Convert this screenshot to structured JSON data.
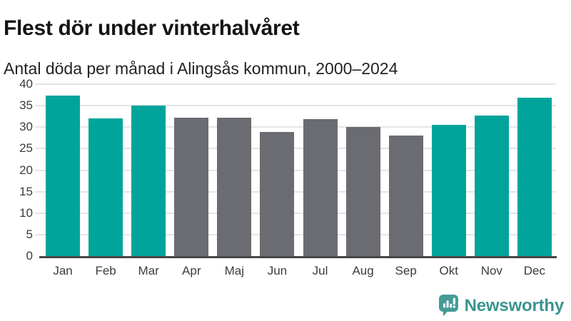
{
  "header": {
    "title": "Flest dör under vinterhalvåret",
    "subtitle": "Antal döda per månad i Alingsås kommun, 2000–2024"
  },
  "chart_data": {
    "type": "bar",
    "title": "Flest dör under vinterhalvåret",
    "subtitle": "Antal döda per månad i Alingsås kommun, 2000–2024",
    "categories": [
      "Jan",
      "Feb",
      "Mar",
      "Apr",
      "Maj",
      "Jun",
      "Jul",
      "Aug",
      "Sep",
      "Okt",
      "Nov",
      "Dec"
    ],
    "values": [
      37.4,
      32.1,
      35.1,
      32.2,
      32.2,
      28.9,
      31.9,
      30.1,
      28.0,
      30.5,
      32.7,
      36.9
    ],
    "bar_colors": [
      "#00a49b",
      "#00a49b",
      "#00a49b",
      "#6b6b72",
      "#6b6b72",
      "#6b6b72",
      "#6b6b72",
      "#6b6b72",
      "#6b6b72",
      "#00a49b",
      "#00a49b",
      "#00a49b"
    ],
    "highlight_color": "#00a49b",
    "muted_color": "#6b6b72",
    "xlabel": "",
    "ylabel": "",
    "ylim": [
      0,
      40
    ],
    "yticks": [
      0,
      5,
      10,
      15,
      20,
      25,
      30,
      35,
      40
    ],
    "grid": true,
    "legend_position": "none"
  },
  "branding": {
    "logo_text": "Newsworthy",
    "logo_color": "#3b948f",
    "icon_color": "#459b96"
  }
}
